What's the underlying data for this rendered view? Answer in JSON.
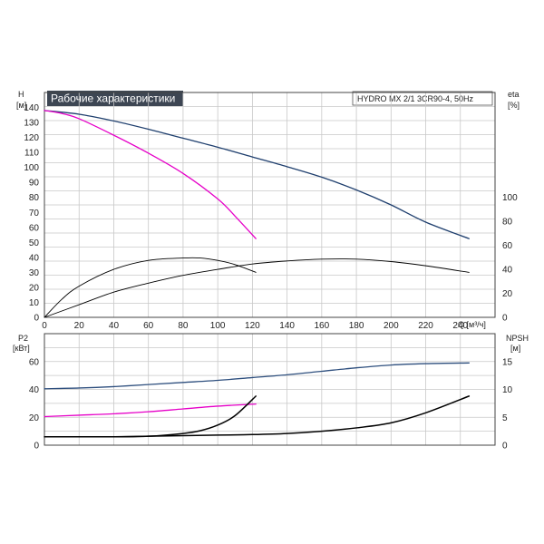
{
  "title": "Рабочие характеристики",
  "model": "HYDRO MX 2/1 3CR90-4, 50Hz",
  "colors": {
    "head_dark": "#1f3f6e",
    "head_magenta": "#e600c8",
    "power_blue": "#2e4f7e",
    "power_magenta": "#e600c8",
    "black": "#000000",
    "grid": "#c8c8c8",
    "title_bg": "#3d4653"
  },
  "top_left_axis": {
    "label": "H",
    "unit": "[м]"
  },
  "top_right_axis": {
    "label": "eta",
    "unit": "[%]"
  },
  "x_axis": {
    "label": "Q [м³/ч]"
  },
  "bottom_left_axis": {
    "label": "P2",
    "unit": "[кВт]"
  },
  "bottom_right_axis": {
    "label": "NPSH",
    "unit": "[м]"
  },
  "chart_data": [
    {
      "type": "line",
      "panel": "top",
      "xlim": [
        0,
        260
      ],
      "ylim": [
        0,
        150
      ],
      "y2lim": [
        0,
        187.5
      ],
      "x_ticks": [
        "0",
        "20",
        "40",
        "60",
        "80",
        "100",
        "120",
        "140",
        "160",
        "180",
        "200",
        "220",
        "240"
      ],
      "y_ticks": [
        "0",
        "10",
        "20",
        "30",
        "40",
        "50",
        "60",
        "70",
        "80",
        "90",
        "100",
        "110",
        "120",
        "130",
        "140"
      ],
      "y2_ticks": [
        "0",
        "20",
        "40",
        "60",
        "80",
        "100"
      ],
      "grid": true,
      "series": [
        {
          "axis": "left",
          "color": "#1f3f6e",
          "x": [
            0,
            20,
            40,
            60,
            80,
            100,
            120,
            140,
            160,
            180,
            200,
            220,
            245
          ],
          "y": [
            138,
            135.5,
            131,
            125.5,
            119.5,
            113.5,
            107,
            100.5,
            93.5,
            85,
            75,
            63.5,
            52.5
          ]
        },
        {
          "axis": "left",
          "color": "#e600c8",
          "x": [
            0,
            10,
            20,
            40,
            60,
            80,
            100,
            110,
            122
          ],
          "y": [
            138,
            136,
            132.5,
            121.5,
            109.5,
            96,
            79,
            67.5,
            52.5
          ]
        },
        {
          "axis": "right",
          "color": "#000000",
          "x": [
            0,
            10,
            20,
            40,
            60,
            80,
            90,
            100,
            110,
            122
          ],
          "y": [
            0,
            15,
            26,
            40,
            47.5,
            49.5,
            49.5,
            47.5,
            44,
            37.5
          ]
        },
        {
          "axis": "right",
          "color": "#000000",
          "x": [
            0,
            20,
            40,
            60,
            80,
            100,
            120,
            140,
            160,
            180,
            200,
            220,
            245
          ],
          "y": [
            0,
            10.5,
            21,
            28.5,
            35,
            40,
            44.5,
            47,
            48.5,
            48.5,
            46.5,
            43,
            37.5
          ]
        }
      ]
    },
    {
      "type": "line",
      "panel": "bottom",
      "xlim": [
        0,
        260
      ],
      "ylim": [
        0,
        80
      ],
      "y2lim": [
        0,
        20
      ],
      "y_ticks": [
        "0",
        "20",
        "40",
        "60"
      ],
      "y2_ticks": [
        "0",
        "5",
        "10",
        "15"
      ],
      "grid": true,
      "series": [
        {
          "axis": "left",
          "color": "#2e4f7e",
          "x": [
            0,
            20,
            40,
            60,
            80,
            100,
            120,
            140,
            160,
            180,
            200,
            220,
            245
          ],
          "y": [
            40.5,
            41,
            42,
            43.5,
            45,
            46.5,
            48.5,
            50.5,
            53,
            55.5,
            57.5,
            58.5,
            59
          ]
        },
        {
          "axis": "left",
          "color": "#e600c8",
          "x": [
            0,
            20,
            40,
            60,
            80,
            100,
            122
          ],
          "y": [
            20.5,
            21.5,
            22.5,
            24,
            26,
            28,
            29.5
          ]
        },
        {
          "axis": "right",
          "color": "#000000",
          "x": [
            0,
            20,
            40,
            60,
            80,
            90,
            100,
            110,
            122
          ],
          "y": [
            1.5,
            1.5,
            1.5,
            1.6,
            2.1,
            2.6,
            3.6,
            5.3,
            8.8
          ]
        },
        {
          "axis": "right",
          "color": "#000000",
          "x": [
            40,
            60,
            80,
            100,
            120,
            140,
            160,
            180,
            200,
            220,
            245
          ],
          "y": [
            1.5,
            1.6,
            1.7,
            1.8,
            1.9,
            2.1,
            2.5,
            3.1,
            4.0,
            5.8,
            8.8
          ]
        }
      ]
    }
  ]
}
